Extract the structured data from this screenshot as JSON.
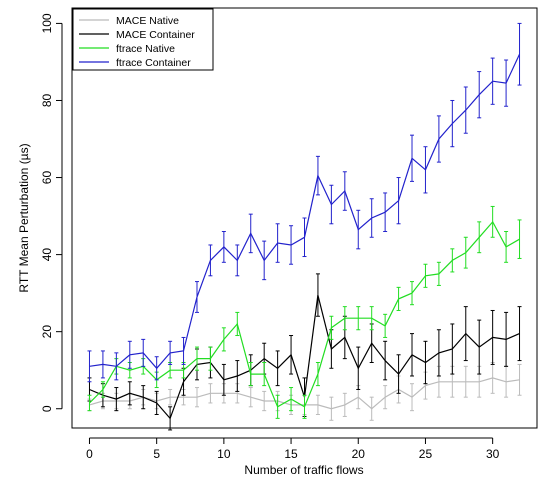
{
  "chart_data": {
    "type": "line",
    "title": "",
    "xlabel": "Number of traffic flows",
    "ylabel": "RTT Mean Perturbation (µs)",
    "xlim": [
      -1.3,
      33.3
    ],
    "ylim": [
      -5,
      104
    ],
    "x_ticks": [
      0,
      5,
      10,
      15,
      20,
      25,
      30
    ],
    "y_ticks": [
      0,
      20,
      40,
      60,
      80,
      100
    ],
    "grid": false,
    "legend_position": "top-left",
    "x": [
      0,
      1,
      2,
      3,
      4,
      5,
      6,
      7,
      8,
      9,
      10,
      11,
      12,
      13,
      14,
      15,
      16,
      17,
      18,
      19,
      20,
      21,
      22,
      23,
      24,
      25,
      26,
      27,
      28,
      29,
      30,
      31,
      32
    ],
    "series": [
      {
        "name": "MACE Native",
        "color": "#bbbbbb",
        "values": [
          1.0,
          2.0,
          2.0,
          2.0,
          3.0,
          2.0,
          3.0,
          3.0,
          3.0,
          4.0,
          4.0,
          4.0,
          3.0,
          2.0,
          2.0,
          1.0,
          1.0,
          1.0,
          0.0,
          1.0,
          3.0,
          0.0,
          3.0,
          5.0,
          3.0,
          6.0,
          7.0,
          7.0,
          7.0,
          7.0,
          8.0,
          7.0,
          7.5
        ],
        "errors": [
          1.5,
          2,
          2,
          2,
          2,
          2,
          2,
          2,
          2.5,
          2.5,
          2.5,
          2.5,
          2.5,
          2.5,
          2.5,
          2.5,
          2.5,
          2.5,
          3,
          3,
          3,
          3,
          3,
          3.5,
          3.5,
          3.5,
          4,
          4,
          4,
          4,
          4,
          4,
          4
        ]
      },
      {
        "name": "MACE Container",
        "color": "#000000",
        "values": [
          5.0,
          3.5,
          2.5,
          4.0,
          3.0,
          1.5,
          -2.5,
          7.0,
          11.5,
          12.0,
          7.5,
          8.5,
          10.0,
          13.0,
          10.5,
          14.0,
          3.0,
          29.5,
          15.5,
          18.5,
          10.5,
          17.0,
          12.5,
          9.0,
          14.0,
          12.0,
          14.5,
          15.5,
          19.5,
          16.0,
          18.5,
          18.0,
          19.5
        ],
        "errors": [
          3,
          3,
          3,
          3,
          3,
          3,
          3,
          3.5,
          4,
          4,
          4,
          4,
          4,
          4,
          4.5,
          5,
          5,
          5.5,
          5,
          5.5,
          5.5,
          5,
          5,
          5,
          5.5,
          5.5,
          6,
          6.5,
          7,
          7,
          7,
          7,
          7
        ]
      },
      {
        "name": "ftrace Native",
        "color": "#22dd22",
        "values": [
          1.5,
          5.0,
          11.0,
          10.0,
          11.0,
          7.5,
          10.0,
          10.0,
          13.0,
          13.0,
          18.0,
          22.0,
          9.0,
          9.0,
          0.5,
          2.5,
          0.5,
          9.0,
          21.0,
          23.5,
          23.5,
          23.5,
          21.5,
          28.5,
          30.0,
          34.5,
          35.0,
          38.5,
          40.5,
          44.5,
          48.5,
          42.0,
          44.0
        ],
        "errors": [
          2,
          2,
          2,
          2,
          2,
          2,
          2,
          2,
          3,
          3,
          3,
          3,
          3,
          3,
          3,
          3,
          3,
          3,
          3,
          3,
          3,
          3,
          3,
          3,
          3,
          3,
          3,
          3,
          4,
          4,
          4,
          4,
          5
        ]
      },
      {
        "name": "ftrace Container",
        "color": "#2222cc",
        "values": [
          11.0,
          11.5,
          11.0,
          14.0,
          14.5,
          10.5,
          14.5,
          15.0,
          29.0,
          38.5,
          42.0,
          38.5,
          45.5,
          38.5,
          43.0,
          42.5,
          44.5,
          60.5,
          53.0,
          56.5,
          46.5,
          49.5,
          51.0,
          54.0,
          65.0,
          62.0,
          70.0,
          74.0,
          77.5,
          81.5,
          85.0,
          84.5,
          92.0
        ],
        "errors": [
          4,
          3.5,
          3.5,
          3.5,
          3.5,
          3,
          3,
          3.5,
          4,
          4,
          4,
          4,
          5,
          5,
          5,
          5,
          5,
          5,
          5,
          5,
          5,
          5,
          5,
          6,
          6,
          6,
          6,
          6,
          6,
          6,
          6,
          6,
          8
        ]
      }
    ]
  }
}
